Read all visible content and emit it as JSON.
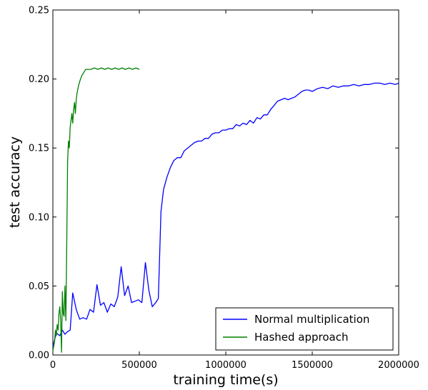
{
  "chart_data": {
    "type": "line",
    "title": "",
    "xlabel": "training time(s)",
    "ylabel": "test accuracy",
    "xlim": [
      0,
      2000000
    ],
    "ylim": [
      0,
      0.25
    ],
    "xticks": [
      0,
      500000,
      1000000,
      1500000,
      2000000
    ],
    "xtick_labels": [
      "0",
      "500000",
      "1000000",
      "1500000",
      "2000000"
    ],
    "yticks": [
      0.0,
      0.05,
      0.1,
      0.15,
      0.2,
      0.25
    ],
    "ytick_labels": [
      "0.00",
      "0.05",
      "0.10",
      "0.15",
      "0.20",
      "0.25"
    ],
    "grid": false,
    "legend_position": "lower-right",
    "series": [
      {
        "name": "Normal multiplication",
        "color": "#0000ff",
        "x": [
          0,
          20000,
          40000,
          55000,
          70000,
          85000,
          100000,
          115000,
          135000,
          155000,
          175000,
          195000,
          215000,
          235000,
          255000,
          275000,
          295000,
          315000,
          335000,
          355000,
          375000,
          395000,
          415000,
          435000,
          455000,
          475000,
          495000,
          515000,
          535000,
          555000,
          575000,
          595000,
          610000,
          625000,
          640000,
          660000,
          680000,
          700000,
          720000,
          740000,
          760000,
          780000,
          800000,
          820000,
          840000,
          860000,
          880000,
          900000,
          920000,
          940000,
          960000,
          980000,
          1000000,
          1020000,
          1040000,
          1060000,
          1080000,
          1100000,
          1120000,
          1140000,
          1160000,
          1180000,
          1200000,
          1220000,
          1240000,
          1260000,
          1280000,
          1300000,
          1320000,
          1340000,
          1360000,
          1380000,
          1400000,
          1420000,
          1440000,
          1460000,
          1480000,
          1500000,
          1530000,
          1560000,
          1590000,
          1620000,
          1650000,
          1680000,
          1710000,
          1740000,
          1770000,
          1800000,
          1830000,
          1860000,
          1890000,
          1920000,
          1950000,
          1980000,
          2000000
        ],
        "y": [
          0.006,
          0.016,
          0.014,
          0.018,
          0.015,
          0.017,
          0.018,
          0.045,
          0.033,
          0.026,
          0.027,
          0.026,
          0.033,
          0.031,
          0.051,
          0.036,
          0.038,
          0.031,
          0.037,
          0.035,
          0.042,
          0.064,
          0.043,
          0.05,
          0.038,
          0.039,
          0.04,
          0.038,
          0.067,
          0.047,
          0.035,
          0.038,
          0.041,
          0.104,
          0.12,
          0.129,
          0.136,
          0.141,
          0.143,
          0.143,
          0.148,
          0.15,
          0.152,
          0.154,
          0.155,
          0.155,
          0.157,
          0.157,
          0.16,
          0.161,
          0.161,
          0.163,
          0.163,
          0.164,
          0.164,
          0.167,
          0.166,
          0.168,
          0.167,
          0.17,
          0.168,
          0.172,
          0.171,
          0.174,
          0.174,
          0.178,
          0.181,
          0.184,
          0.185,
          0.186,
          0.185,
          0.186,
          0.187,
          0.189,
          0.191,
          0.192,
          0.192,
          0.191,
          0.193,
          0.194,
          0.193,
          0.195,
          0.194,
          0.195,
          0.195,
          0.196,
          0.195,
          0.196,
          0.196,
          0.197,
          0.197,
          0.196,
          0.197,
          0.196,
          0.197
        ]
      },
      {
        "name": "Hashed approach",
        "color": "#008000",
        "x": [
          0,
          10000,
          15000,
          20000,
          25000,
          30000,
          35000,
          40000,
          45000,
          50000,
          55000,
          60000,
          65000,
          70000,
          75000,
          80000,
          85000,
          90000,
          95000,
          100000,
          105000,
          110000,
          115000,
          120000,
          125000,
          130000,
          135000,
          140000,
          150000,
          160000,
          170000,
          180000,
          190000,
          200000,
          220000,
          240000,
          260000,
          280000,
          300000,
          320000,
          340000,
          360000,
          380000,
          400000,
          420000,
          440000,
          460000,
          480000,
          500000
        ],
        "y": [
          0.003,
          0.01,
          0.018,
          0.014,
          0.022,
          0.018,
          0.03,
          0.035,
          0.025,
          0.002,
          0.046,
          0.03,
          0.028,
          0.05,
          0.025,
          0.08,
          0.14,
          0.155,
          0.15,
          0.165,
          0.17,
          0.175,
          0.168,
          0.178,
          0.183,
          0.175,
          0.185,
          0.19,
          0.196,
          0.2,
          0.203,
          0.205,
          0.207,
          0.207,
          0.207,
          0.208,
          0.207,
          0.208,
          0.207,
          0.208,
          0.207,
          0.208,
          0.207,
          0.208,
          0.207,
          0.208,
          0.207,
          0.208,
          0.207
        ]
      }
    ]
  }
}
